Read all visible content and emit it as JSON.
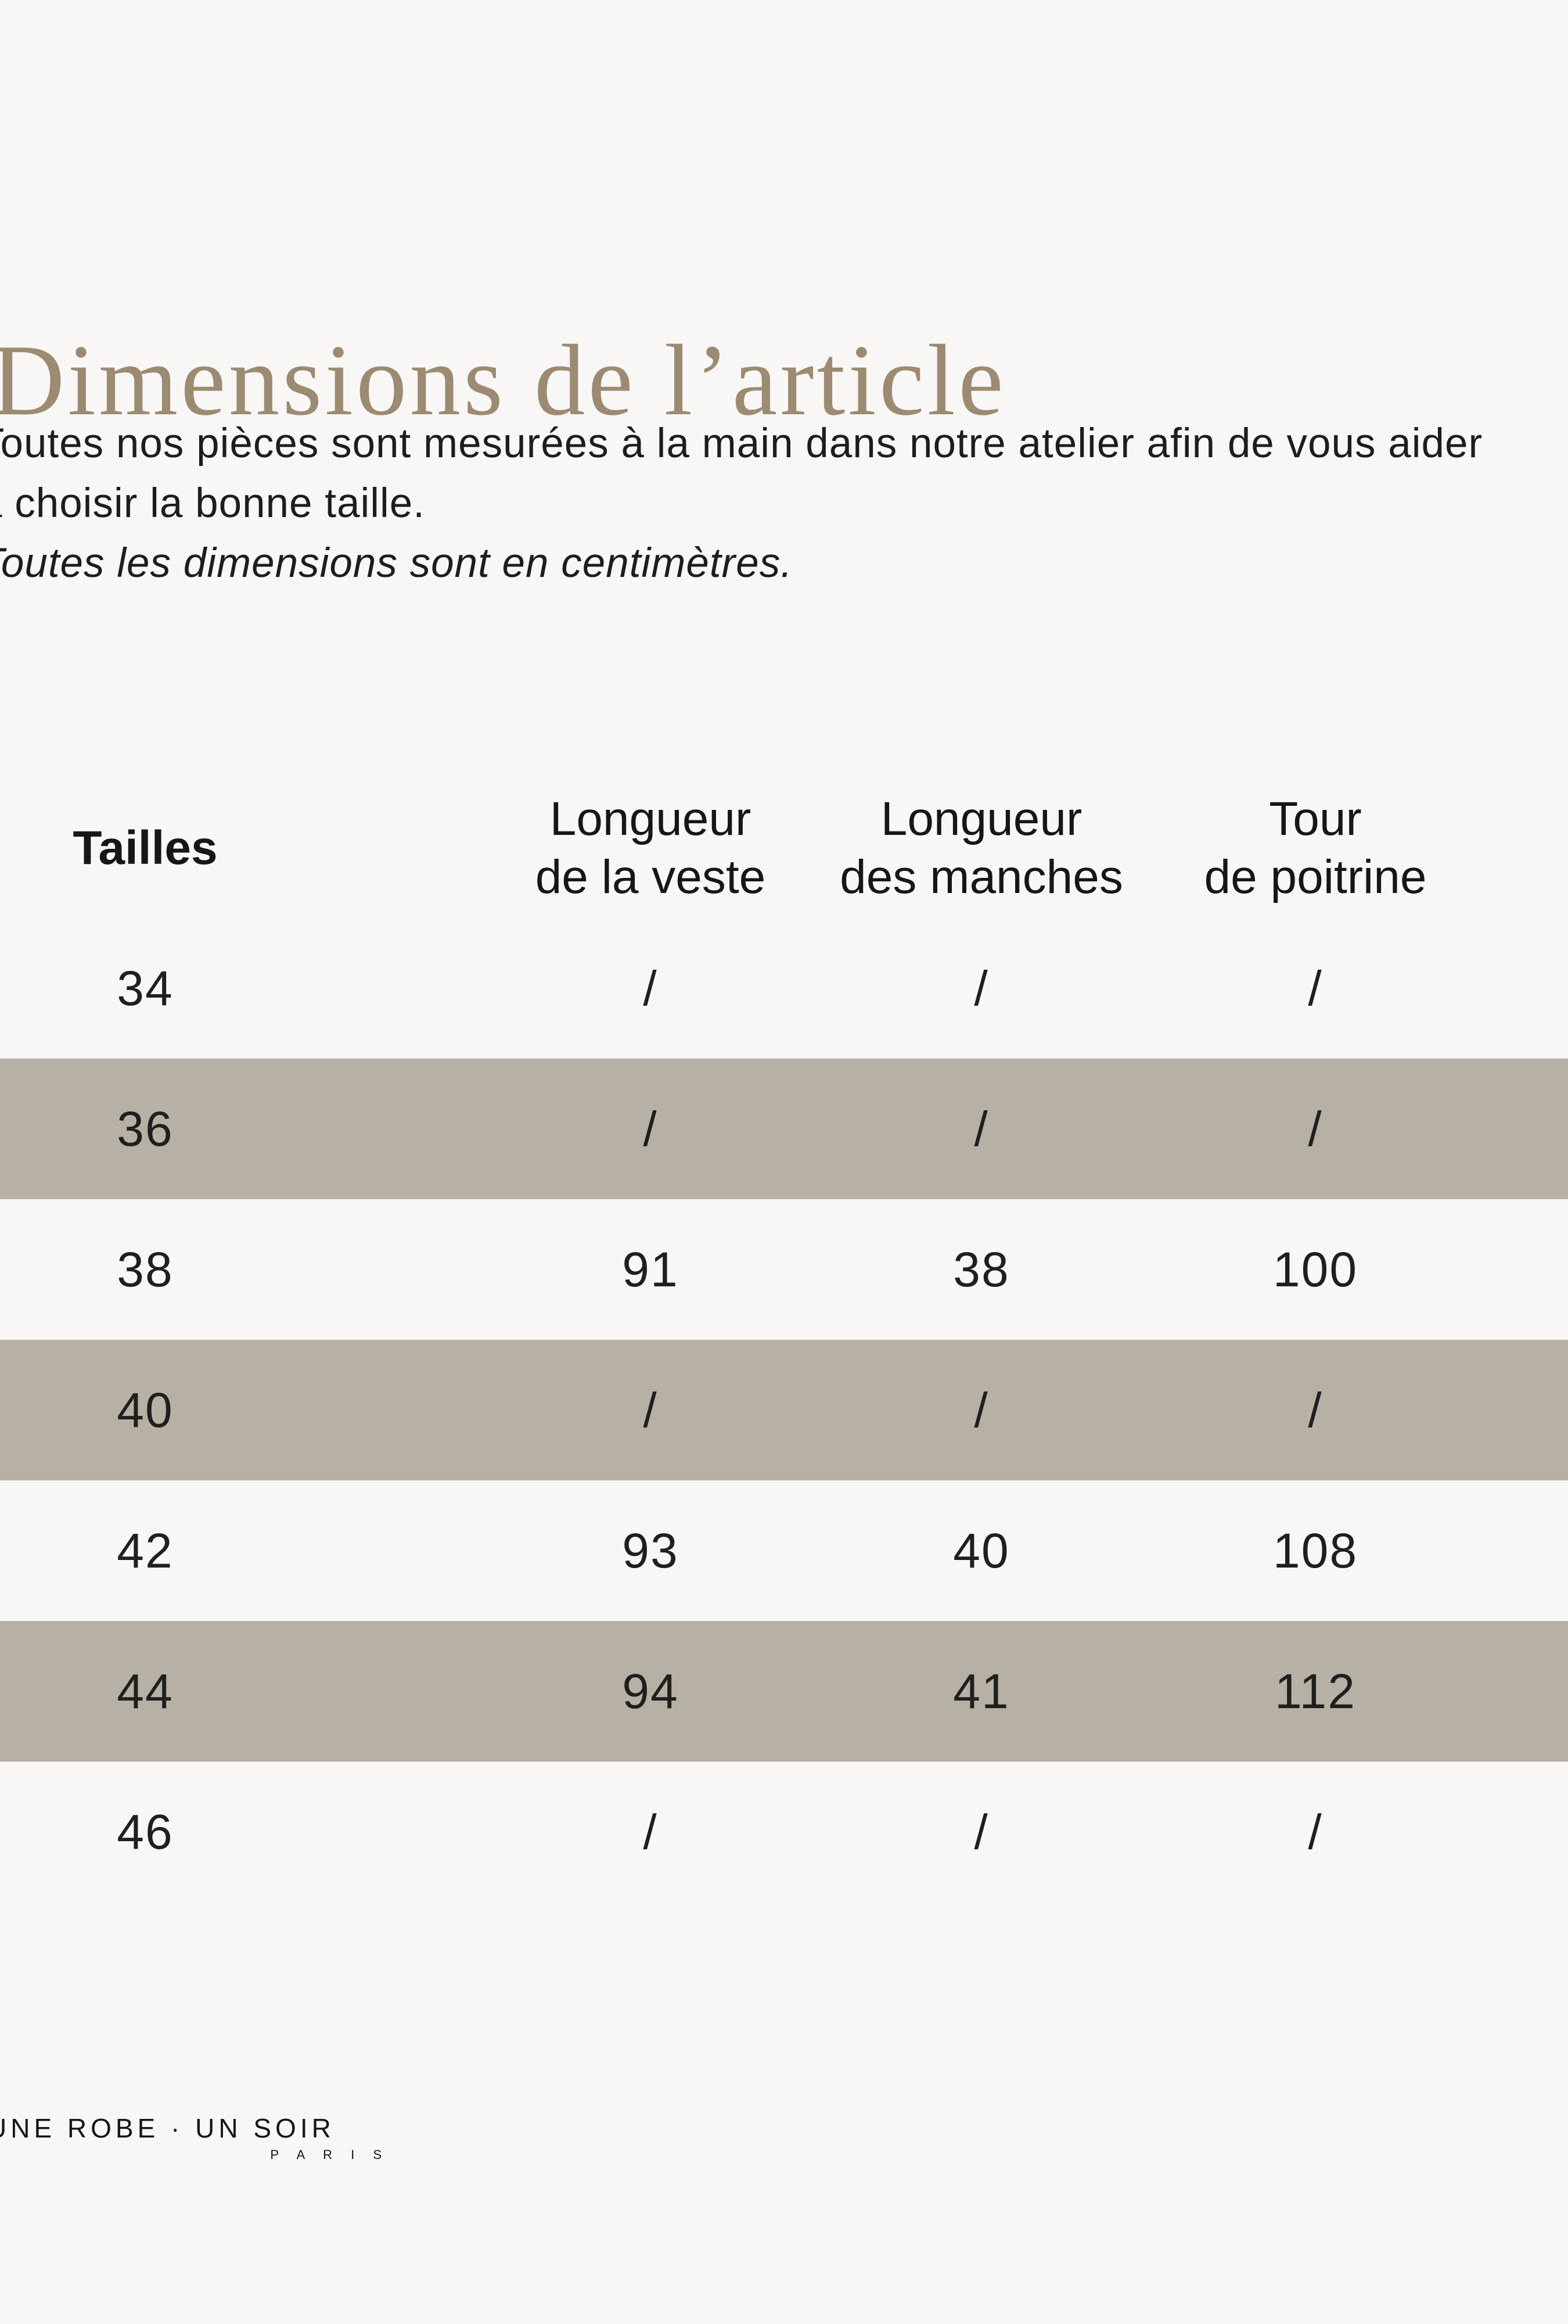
{
  "page": {
    "title": "Dimensions de l’article",
    "intro_line1": "Toutes nos pièces sont mesurées à la main dans notre atelier afin de vous aider",
    "intro_line2": "à choisir la bonne taille.",
    "intro_note": "Toutes les dimensions sont en centimètres."
  },
  "table": {
    "headers": {
      "sizes": "Tailles",
      "jacket_line1": "Longueur",
      "jacket_line2": "de la veste",
      "sleeves_line1": "Longueur",
      "sleeves_line2": "des manches",
      "chest_line1": "Tour",
      "chest_line2": "de poitrine"
    },
    "rows": [
      {
        "size": "34",
        "jacket": "/",
        "sleeves": "/",
        "chest": "/"
      },
      {
        "size": "36",
        "jacket": "/",
        "sleeves": "/",
        "chest": "/"
      },
      {
        "size": "38",
        "jacket": "91",
        "sleeves": "38",
        "chest": "100"
      },
      {
        "size": "40",
        "jacket": "/",
        "sleeves": "/",
        "chest": "/"
      },
      {
        "size": "42",
        "jacket": "93",
        "sleeves": "40",
        "chest": "108"
      },
      {
        "size": "44",
        "jacket": "94",
        "sleeves": "41",
        "chest": "112"
      },
      {
        "size": "46",
        "jacket": "/",
        "sleeves": "/",
        "chest": "/"
      }
    ]
  },
  "footer": {
    "brand": "UNE ROBE · UN SOIR",
    "city": "P A R I S"
  },
  "colors": {
    "background": "#f8f7f5",
    "band": "#b7b1a5",
    "title": "#9c8b72",
    "text": "#1d1d1d"
  }
}
